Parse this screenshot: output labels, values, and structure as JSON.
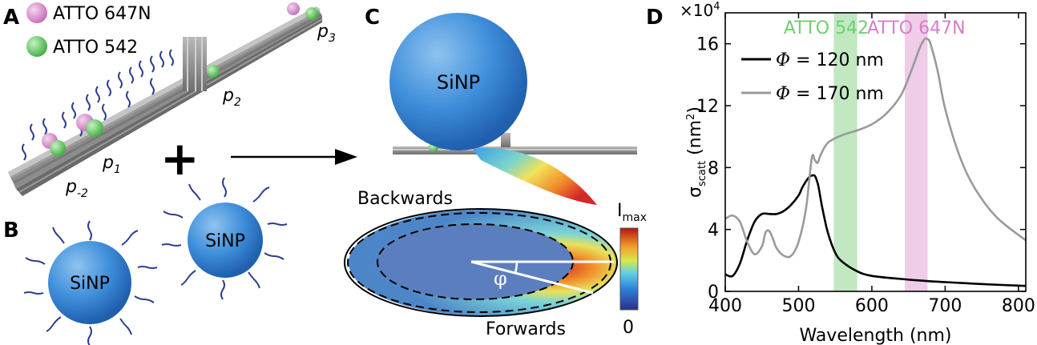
{
  "panel_a": {
    "letter": "A",
    "legend": [
      {
        "label": "ATTO 647N",
        "color": "#d98ccf"
      },
      {
        "label": "ATTO 542",
        "color": "#6fd06f"
      }
    ],
    "site_labels": [
      {
        "main": "p",
        "sub": "3"
      },
      {
        "main": "p",
        "sub": "2"
      },
      {
        "main": "p",
        "sub": "1"
      },
      {
        "main": "p",
        "sub": "-2"
      }
    ]
  },
  "panel_b": {
    "letter": "B",
    "particle_label_1": "SiNP",
    "particle_label_2": "SiNP"
  },
  "plus": "+",
  "panel_c": {
    "letter": "C",
    "particle_label": "SiNP",
    "backwards": "Backwards",
    "forwards": "Forwards",
    "angle": "φ",
    "colorbar_max": "I",
    "colorbar_max_sub": "max",
    "colorbar_min": "0"
  },
  "panel_d": {
    "letter": "D",
    "colors": {
      "phi120": "#000000",
      "phi170": "#9a9a9a",
      "atto542_band": "#9fdc9f",
      "atto647_band": "#e6b0dc",
      "atto542_text": "#6fcf6f",
      "atto647_text": "#d47fc9"
    }
  },
  "chart_data": {
    "type": "line",
    "xlabel": "Wavelength (nm)",
    "ylabel_main": "σ",
    "ylabel_sub": "scatt",
    "ylabel_unit": "(nm",
    "ylabel_sup": "2",
    "ylabel_close": ")",
    "y_multiplier": "×10",
    "y_multiplier_exp": "4",
    "xlim": [
      400,
      810
    ],
    "ylim": [
      0,
      18
    ],
    "xticks": [
      "400",
      "500",
      "600",
      "700",
      "800"
    ],
    "xtick_values": [
      400,
      500,
      600,
      700,
      800
    ],
    "yticks": [
      "0",
      "4",
      "8",
      "12",
      "16"
    ],
    "ytick_values": [
      0,
      4,
      8,
      12,
      16
    ],
    "bands": [
      {
        "label": "ATTO 542",
        "x_start": 548,
        "x_end": 580
      },
      {
        "label": "ATTO 647N",
        "x_start": 645,
        "x_end": 676
      }
    ],
    "series": [
      {
        "name": "Φ = 120 nm",
        "x": [
          400,
          410,
          420,
          430,
          440,
          450,
          460,
          470,
          480,
          490,
          500,
          505,
          510,
          515,
          520,
          523,
          527,
          532,
          540,
          550,
          560,
          580,
          600,
          640,
          680,
          720,
          760,
          810
        ],
        "y": [
          1.1,
          1.0,
          1.8,
          3.3,
          4.5,
          5.0,
          5.0,
          5.0,
          5.2,
          5.6,
          6.2,
          6.7,
          7.1,
          7.4,
          7.5,
          7.4,
          6.8,
          5.5,
          3.8,
          2.5,
          1.9,
          1.3,
          1.0,
          0.8,
          0.65,
          0.55,
          0.45,
          0.35
        ]
      },
      {
        "name": "Φ = 170 nm",
        "x": [
          400,
          410,
          420,
          430,
          440,
          450,
          455,
          460,
          465,
          470,
          480,
          490,
          500,
          510,
          518,
          522,
          526,
          530,
          540,
          560,
          580,
          600,
          620,
          640,
          655,
          665,
          672,
          676,
          680,
          690,
          700,
          720,
          740,
          770,
          810
        ],
        "y": [
          4.7,
          4.9,
          4.5,
          3.2,
          2.4,
          2.9,
          3.8,
          3.9,
          3.4,
          2.8,
          2.3,
          2.3,
          3.2,
          5.3,
          8.6,
          8.5,
          8.3,
          8.8,
          9.6,
          10.1,
          10.4,
          10.8,
          11.5,
          12.7,
          14.4,
          15.7,
          16.3,
          16.3,
          16.0,
          14.2,
          11.8,
          8.7,
          6.7,
          4.8,
          3.3
        ]
      }
    ]
  }
}
